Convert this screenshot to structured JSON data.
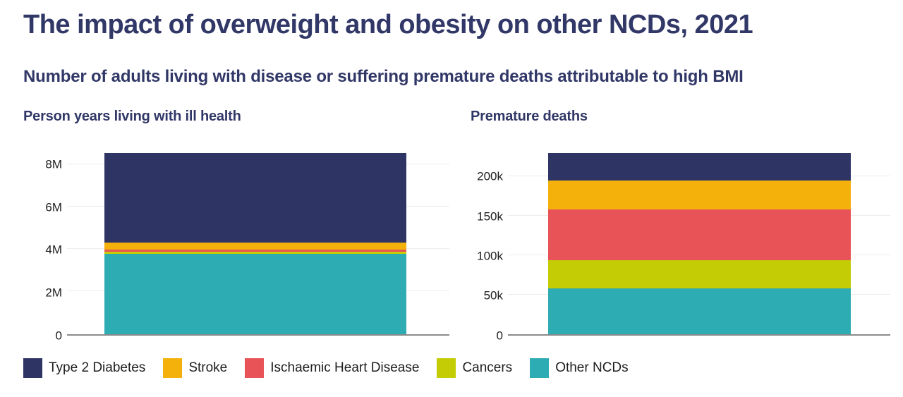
{
  "page": {
    "title": "The impact of overweight and obesity on other NCDs, 2021",
    "subtitle": "Number of adults living with disease or suffering premature deaths attributable to high BMI"
  },
  "colors": {
    "background": "#ffffff",
    "heading_text": "#313867",
    "axis_text": "#1e1e1e",
    "axis_line": "#8a8a8a",
    "gridline": "#ececec"
  },
  "legend": {
    "position": "bottom",
    "items": [
      {
        "label": "Type 2 Diabetes",
        "color": "#2E3565"
      },
      {
        "label": "Stroke",
        "color": "#F4B10C"
      },
      {
        "label": "Ischaemic Heart Disease",
        "color": "#E85358"
      },
      {
        "label": "Cancers",
        "color": "#C3CC05"
      },
      {
        "label": "Other NCDs",
        "color": "#2EACB4"
      }
    ]
  },
  "chart_data": [
    {
      "type": "bar",
      "stacked": true,
      "title": "Person years living with ill health",
      "unit": "person-years (millions)",
      "categories": [
        "2021"
      ],
      "series": [
        {
          "name": "Other NCDs",
          "values": [
            3.79
          ],
          "color": "#2EACB4"
        },
        {
          "name": "Cancers",
          "values": [
            0.07
          ],
          "color": "#C3CC05"
        },
        {
          "name": "Ischaemic Heart Disease",
          "values": [
            0.11
          ],
          "color": "#E85358"
        },
        {
          "name": "Stroke",
          "values": [
            0.33
          ],
          "color": "#F4B10C"
        },
        {
          "name": "Type 2 Diabetes",
          "values": [
            4.23
          ],
          "color": "#2E3565"
        }
      ],
      "total": 8.53,
      "ylim": [
        0,
        8.53
      ],
      "yticks": [
        {
          "value": 0,
          "label": "0"
        },
        {
          "value": 2,
          "label": "2M"
        },
        {
          "value": 4,
          "label": "4M"
        },
        {
          "value": 6,
          "label": "6M"
        },
        {
          "value": 8,
          "label": "8M"
        }
      ],
      "grid": "horizontal-light",
      "legend_position": "bottom-shared"
    },
    {
      "type": "bar",
      "stacked": true,
      "title": "Premature deaths",
      "unit": "deaths (thousands)",
      "categories": [
        "2021"
      ],
      "series": [
        {
          "name": "Other NCDs",
          "values": [
            57.5
          ],
          "color": "#2EACB4"
        },
        {
          "name": "Cancers",
          "values": [
            36
          ],
          "color": "#C3CC05"
        },
        {
          "name": "Ischaemic Heart Disease",
          "values": [
            65
          ],
          "color": "#E85358"
        },
        {
          "name": "Stroke",
          "values": [
            36.5
          ],
          "color": "#F4B10C"
        },
        {
          "name": "Type 2 Diabetes",
          "values": [
            35
          ],
          "color": "#2E3565"
        }
      ],
      "total": 230,
      "ylim": [
        0,
        230
      ],
      "yticks": [
        {
          "value": 0,
          "label": "0"
        },
        {
          "value": 50,
          "label": "50k"
        },
        {
          "value": 100,
          "label": "100k"
        },
        {
          "value": 150,
          "label": "150k"
        },
        {
          "value": 200,
          "label": "200k"
        }
      ],
      "grid": "horizontal-light",
      "legend_position": "bottom-shared"
    }
  ]
}
